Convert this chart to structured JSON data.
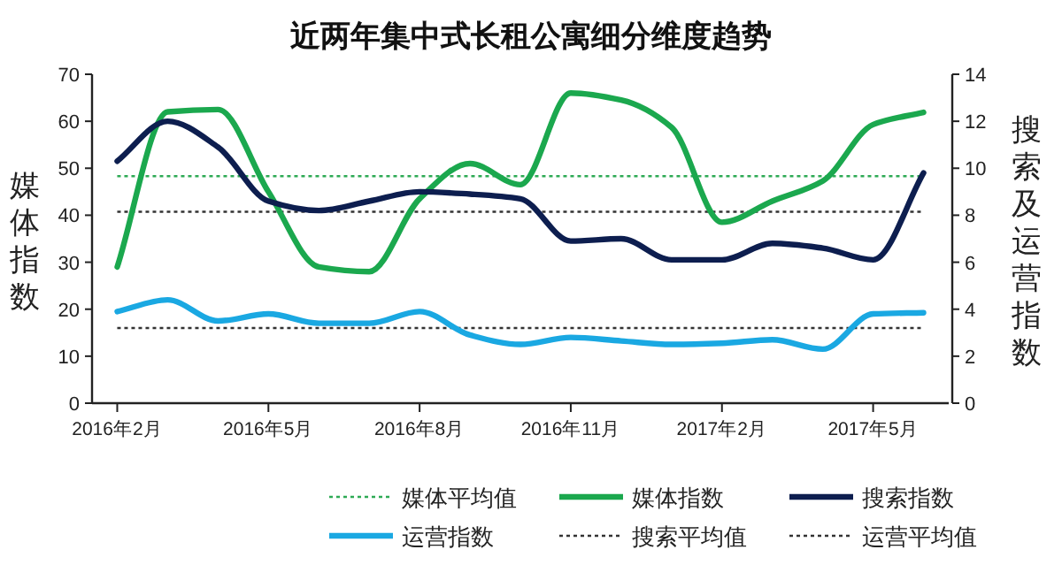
{
  "chart_data": {
    "type": "line",
    "title": "近两年集中式长租公寓细分维度趋势",
    "ylabel": "媒体指数",
    "y2label": "搜索及运营指数",
    "categories": [
      "2016年2月",
      null,
      null,
      "2016年5月",
      null,
      null,
      "2016年8月",
      null,
      null,
      "2016年11月",
      null,
      null,
      "2017年2月",
      null,
      null,
      "2017年5月",
      null
    ],
    "series": [
      {
        "name": "媒体指数",
        "color": "#1ba84e",
        "values": [
          29,
          62,
          62.5,
          45,
          29,
          28,
          43.5,
          51,
          46.5,
          66,
          64.5,
          58.7,
          38.5,
          43,
          47.3,
          59.3,
          61.9
        ]
      },
      {
        "name": "搜索指数",
        "color": "#0d1e4f",
        "axis": "y2",
        "values": [
          10.3,
          12.0,
          10.9,
          8.6,
          8.2,
          8.6,
          9.0,
          8.9,
          8.7,
          6.9,
          7.0,
          6.1,
          6.1,
          6.8,
          6.6,
          6.1,
          9.8
        ]
      },
      {
        "name": "运营指数",
        "color": "#1aa8e2",
        "axis": "y2",
        "values": [
          3.9,
          4.4,
          3.5,
          3.8,
          3.4,
          3.4,
          3.9,
          2.9,
          2.5,
          2.8,
          2.65,
          2.5,
          2.55,
          2.7,
          2.3,
          3.8,
          3.85
        ]
      }
    ],
    "ref_lines": [
      {
        "axis": "y",
        "value": 48.3,
        "label": "媒体平均值",
        "color": "#2eaa55",
        "line_style": "dotted"
      },
      {
        "axis": "y2",
        "value": 8.15,
        "label": "搜索平均值",
        "color": "#333333",
        "line_style": "dotted"
      },
      {
        "axis": "y2",
        "value": 3.2,
        "label": "运营平均值",
        "color": "#333333",
        "line_style": "dotted"
      }
    ],
    "ylim": [
      0,
      70
    ],
    "yticks": [
      0,
      10,
      20,
      30,
      40,
      50,
      60,
      70
    ],
    "y2lim": [
      0,
      14
    ],
    "y2ticks": [
      0,
      2,
      4,
      6,
      8,
      10,
      12,
      14
    ],
    "grid": false,
    "legend": "bottom",
    "marker": "none",
    "line_style": "solid"
  }
}
